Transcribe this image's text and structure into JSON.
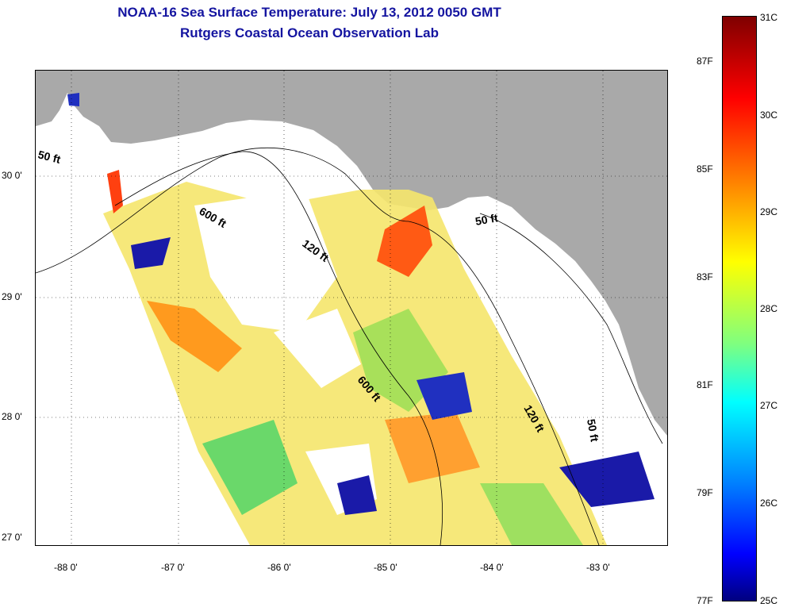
{
  "title": {
    "line1": "NOAA-16 Sea Surface Temperature:  July 13, 2012 0050 GMT",
    "line2": "Rutgers Coastal Ocean Observation Lab"
  },
  "axes": {
    "latitude_labels": [
      "30 0'",
      "29 0'",
      "28 0'",
      "27 0'"
    ],
    "longitude_labels": [
      "-88 0'",
      "-87 0'",
      "-86 0'",
      "-85 0'",
      "-84 0'",
      "-83 0'"
    ]
  },
  "contours": {
    "c50a": "50 ft",
    "c600a": "600 ft",
    "c120a": "120 ft",
    "c50b": "50 ft",
    "c600b": "600 ft",
    "c120b": "120 ft",
    "c50c": "50 ft"
  },
  "colorbar": {
    "fahrenheit": [
      "87F",
      "85F",
      "83F",
      "81F",
      "79F",
      "77F"
    ],
    "celsius": [
      "31C",
      "30C",
      "29C",
      "28C",
      "27C",
      "26C",
      "25C"
    ]
  },
  "colors": {
    "land": "#a9a9a9",
    "title": "#1414a0"
  }
}
